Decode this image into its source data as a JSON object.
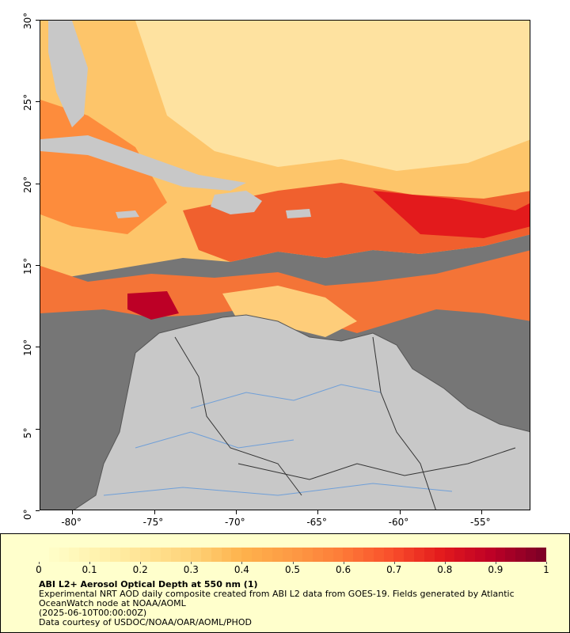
{
  "map": {
    "lon_ticks": [
      "-80°",
      "-75°",
      "-70°",
      "-65°",
      "-60°",
      "-55°"
    ],
    "lat_ticks": [
      "0°",
      "5°",
      "10°",
      "15°",
      "20°",
      "25°",
      "30°"
    ],
    "extent": {
      "lon_min": -82,
      "lon_max": -52,
      "lat_min": 0,
      "lat_max": 30
    },
    "colors": {
      "ocean_no_data": "#767676",
      "land": "#c8c8c8",
      "rivers": "#6f9fd8",
      "borders": "#555555"
    }
  },
  "legend": {
    "colorbar_ticks": [
      "0",
      "0.1",
      "0.2",
      "0.3",
      "0.4",
      "0.5",
      "0.6",
      "0.7",
      "0.8",
      "0.9",
      "1"
    ],
    "colorbar_colors": [
      "#ffffcc",
      "#fff3b0",
      "#ffe494",
      "#fed278",
      "#feb24c",
      "#fd9a44",
      "#fd7b38",
      "#f94e2b",
      "#e31a1c",
      "#bd0026",
      "#800026"
    ],
    "title": "ABI L2+ Aerosol Optical Depth at 550 nm (1)",
    "line1": "Experimental NRT AOD daily composite created from ABI L2 data from GOES-19. Fields generated by Atlantic",
    "line2": "OceanWatch node at NOAA/AOML",
    "line3": "(2025-06-10T00:00:00Z)",
    "line4": "Data courtesy of USDOC/NOAA/OAR/AOML/PHOD"
  }
}
